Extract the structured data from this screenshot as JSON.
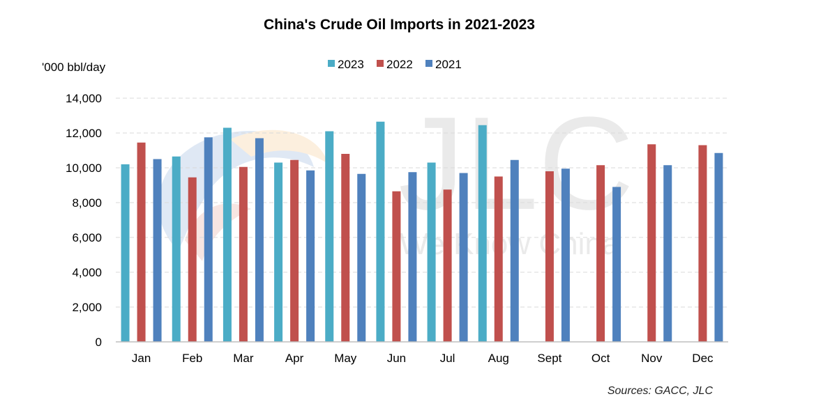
{
  "chart_data": {
    "type": "bar",
    "title": "China's Crude Oil Imports in 2021-2023",
    "ylabel": "'000 bbl/day",
    "xlabel": "",
    "ylim": [
      0,
      14000
    ],
    "y_ticks": [
      "0",
      "2,000",
      "4,000",
      "6,000",
      "8,000",
      "10,000",
      "12,000",
      "14,000"
    ],
    "y_tick_values": [
      0,
      2000,
      4000,
      6000,
      8000,
      10000,
      12000,
      14000
    ],
    "grid": true,
    "legend_position": "top-center",
    "categories": [
      "Jan",
      "Feb",
      "Mar",
      "Apr",
      "May",
      "Jun",
      "Jul",
      "Aug",
      "Sept",
      "Oct",
      "Nov",
      "Dec"
    ],
    "series": [
      {
        "name": "2023",
        "color": "#4BACC6",
        "values": [
          10200,
          10650,
          12300,
          10300,
          12100,
          12650,
          10300,
          12450,
          null,
          null,
          null,
          null
        ]
      },
      {
        "name": "2022",
        "color": "#C0504D",
        "values": [
          11450,
          9450,
          10050,
          10450,
          10800,
          8650,
          8750,
          9500,
          9800,
          10150,
          11350,
          11300
        ]
      },
      {
        "name": "2021",
        "color": "#4F81BD",
        "values": [
          10500,
          11750,
          11700,
          9850,
          9650,
          9750,
          9700,
          10450,
          9950,
          8900,
          10150,
          10850
        ]
      }
    ]
  },
  "source": "Sources: GACC, JLC",
  "watermark": {
    "text": "JLC",
    "tagline": "We Know China"
  }
}
